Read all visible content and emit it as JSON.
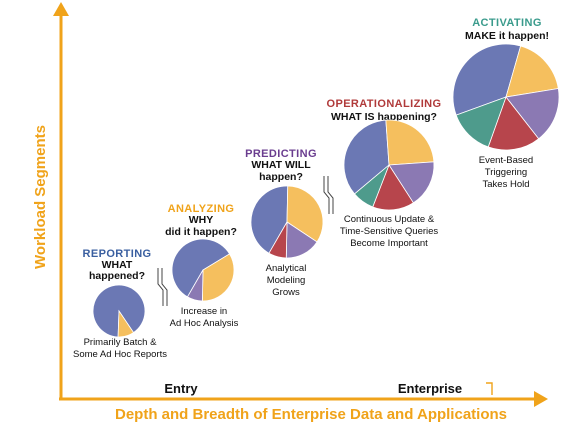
{
  "colors": {
    "axis": "#f0a31a",
    "slices": [
      "#6b78b4",
      "#f5bf5e",
      "#8b79b3",
      "#b7454c",
      "#4e9b8c"
    ],
    "stroke": "#ffffff"
  },
  "axes": {
    "y_label": "Workload Segments",
    "x_label": "Depth and Breadth of Enterprise Data and Applications",
    "x_marks": [
      "Entry",
      "Enterprise"
    ]
  },
  "stages": [
    {
      "title": "REPORTING",
      "title_color": "#3a5fa0",
      "question": [
        "WHAT",
        "happened?"
      ],
      "caption": [
        "Primarily Batch &",
        "Some Ad Hoc Reports"
      ],
      "slices": [
        0.9,
        0.1
      ]
    },
    {
      "title": "ANALYZING",
      "title_color": "#f0a31a",
      "question": [
        "WHY",
        "did it happen?"
      ],
      "caption": [
        "Increase in",
        "Ad Hoc Analysis"
      ],
      "slices": [
        0.58,
        0.34,
        0.08
      ]
    },
    {
      "title": "PREDICTING",
      "title_color": "#6a3d8f",
      "question": [
        "WHAT WILL",
        "happen?"
      ],
      "caption": [
        "Analytical",
        "Modeling",
        "Grows"
      ],
      "slices": [
        0.42,
        0.34,
        0.16,
        0.08
      ]
    },
    {
      "title": "OPERATIONALIZING",
      "title_color": "#b03a3a",
      "question": [
        "WHAT IS happening?"
      ],
      "caption": [
        "Continuous Update &",
        "Time-Sensitive Queries",
        "Become Important"
      ],
      "slices": [
        0.35,
        0.25,
        0.17,
        0.15,
        0.08
      ]
    },
    {
      "title": "ACTIVATING",
      "title_color": "#3a9b8c",
      "question": [
        "MAKE it happen!"
      ],
      "caption": [
        "Event-Based",
        "Triggering",
        "Takes Hold"
      ],
      "slices": [
        0.35,
        0.18,
        0.17,
        0.16,
        0.14
      ]
    }
  ]
}
